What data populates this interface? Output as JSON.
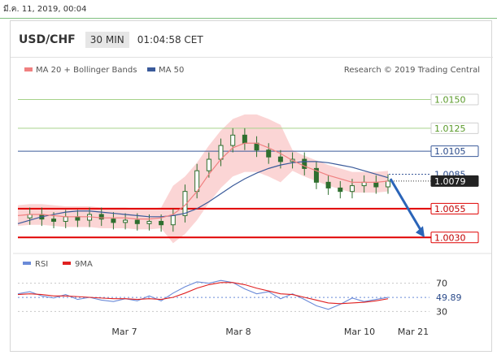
{
  "top_bar": {
    "date": "มี.ค. 11, 2019, 00:04"
  },
  "header": {
    "symbol": "USD/CHF",
    "timeframe": "30 MIN",
    "time": "01:04:58 CET"
  },
  "colors": {
    "ma20": "#f08080",
    "ma50": "#3a5a9a",
    "bollinger_fill": "#f9c7c7",
    "candle": "#2f6f2f",
    "red_line": "#e00000",
    "blue_line": "#3a5a9a",
    "green_line": "#a6d28a",
    "rsi_line": "#6a8ad8",
    "rsi_ma": "#e02020",
    "arrow": "#2a64b8"
  },
  "chart_data": [
    {
      "type": "line",
      "title": "",
      "legend": [
        {
          "label": "MA 20 + Bollinger Bands",
          "color": "#f08080"
        },
        {
          "label": "MA 50",
          "color": "#3a5a9a"
        }
      ],
      "credit": "Research © 2019 Trading Central",
      "y_labels": [
        {
          "value": 1.015,
          "text": "1.0150",
          "style": "green"
        },
        {
          "value": 1.0125,
          "text": "1.0125",
          "style": "green"
        },
        {
          "value": 1.0105,
          "text": "1.0105",
          "style": "blue"
        },
        {
          "value": 1.0085,
          "text": "1.0085",
          "style": "dotted"
        },
        {
          "value": 1.0079,
          "text": "1.0079",
          "style": "current"
        },
        {
          "value": 1.0055,
          "text": "1.0055",
          "style": "red"
        },
        {
          "value": 1.003,
          "text": "1.0030",
          "style": "red"
        }
      ],
      "x_labels": [
        "Mar 7",
        "Mar 8",
        "Mar 10",
        "Mar 21"
      ],
      "ylim": [
        1.0021,
        1.0168
      ],
      "series": [
        {
          "name": "MA 50",
          "values": [
            1.0042,
            1.0045,
            1.0048,
            1.005,
            1.0052,
            1.0053,
            1.0053,
            1.0052,
            1.0051,
            1.005,
            1.0049,
            1.0048,
            1.0048,
            1.0049,
            1.0051,
            1.0055,
            1.0061,
            1.0068,
            1.0075,
            1.0081,
            1.0086,
            1.009,
            1.0093,
            1.0095,
            1.0096,
            1.0096,
            1.0095,
            1.0093,
            1.0091,
            1.0088,
            1.0085,
            1.0082
          ]
        },
        {
          "name": "MA 20",
          "values": [
            1.0049,
            1.005,
            1.005,
            1.0049,
            1.0048,
            1.0048,
            1.0048,
            1.0047,
            1.0047,
            1.0047,
            1.0046,
            1.0046,
            1.0047,
            1.005,
            1.0058,
            1.007,
            1.0085,
            1.0098,
            1.0108,
            1.0112,
            1.0112,
            1.0108,
            1.0103,
            1.0097,
            1.0092,
            1.0088,
            1.0084,
            1.0081,
            1.0078,
            1.0078,
            1.0078,
            1.0079
          ]
        }
      ],
      "price_close": [
        1.0047,
        1.005,
        1.0046,
        1.0044,
        1.0048,
        1.0045,
        1.005,
        1.0046,
        1.0043,
        1.0045,
        1.0042,
        1.0044,
        1.0041,
        1.0049,
        1.007,
        1.0088,
        1.0098,
        1.011,
        1.0119,
        1.0112,
        1.0106,
        1.01,
        1.0096,
        1.0098,
        1.009,
        1.0078,
        1.0073,
        1.007,
        1.0075,
        1.0078,
        1.0074,
        1.0079
      ],
      "forecast_arrow": {
        "from": 1.0081,
        "to": 1.003
      }
    },
    {
      "type": "line",
      "title": "",
      "legend": [
        {
          "label": "RSI",
          "color": "#6a8ad8"
        },
        {
          "label": "9MA",
          "color": "#e02020"
        }
      ],
      "ylim": [
        20,
        80
      ],
      "y_labels": [
        {
          "value": 70,
          "text": "70"
        },
        {
          "value": 49.89,
          "text": "49.89"
        },
        {
          "value": 30,
          "text": "30"
        }
      ],
      "series": [
        {
          "name": "RSI",
          "values": [
            55,
            58,
            52,
            49,
            54,
            47,
            50,
            46,
            44,
            48,
            45,
            52,
            45,
            56,
            65,
            72,
            70,
            74,
            71,
            62,
            55,
            58,
            48,
            55,
            47,
            38,
            33,
            40,
            49,
            44,
            47,
            50
          ]
        },
        {
          "name": "9MA",
          "values": [
            54,
            55,
            54,
            52,
            52,
            51,
            50,
            49,
            48,
            48,
            47,
            48,
            47,
            50,
            56,
            63,
            68,
            71,
            71,
            68,
            63,
            59,
            55,
            54,
            50,
            46,
            42,
            41,
            42,
            43,
            45,
            48
          ]
        }
      ]
    }
  ]
}
